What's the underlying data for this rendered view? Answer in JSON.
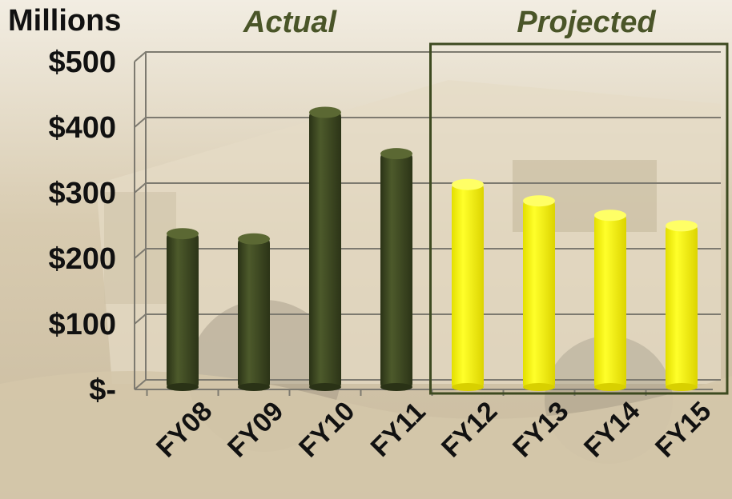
{
  "chart_data": {
    "type": "bar",
    "ylabel": "Millions",
    "ylim": [
      0,
      500
    ],
    "yticks": [
      {
        "value": 500,
        "label": "$500"
      },
      {
        "value": 400,
        "label": "$400"
      },
      {
        "value": 300,
        "label": "$300"
      },
      {
        "value": 200,
        "label": "$200"
      },
      {
        "value": 100,
        "label": "$100"
      },
      {
        "value": 0,
        "label": "$-"
      }
    ],
    "categories": [
      "FY08",
      "FY09",
      "FY10",
      "FY11",
      "FY12",
      "FY13",
      "FY14",
      "FY15"
    ],
    "values": [
      240,
      232,
      425,
      362,
      315,
      290,
      268,
      252
    ],
    "groups": [
      {
        "label": "Actual",
        "categories": [
          "FY08",
          "FY09",
          "FY10",
          "FY11"
        ],
        "color": "#3f4a22"
      },
      {
        "label": "Projected",
        "categories": [
          "FY12",
          "FY13",
          "FY14",
          "FY15"
        ],
        "color": "#ffff00"
      }
    ],
    "grid": true,
    "legend": "none"
  },
  "colors": {
    "actual_bar": "#3f4a22",
    "projected_bar": "#ffff00",
    "group_title": "#4a5528",
    "projected_box": "#3d4a20",
    "background": "#d9cdb4"
  }
}
